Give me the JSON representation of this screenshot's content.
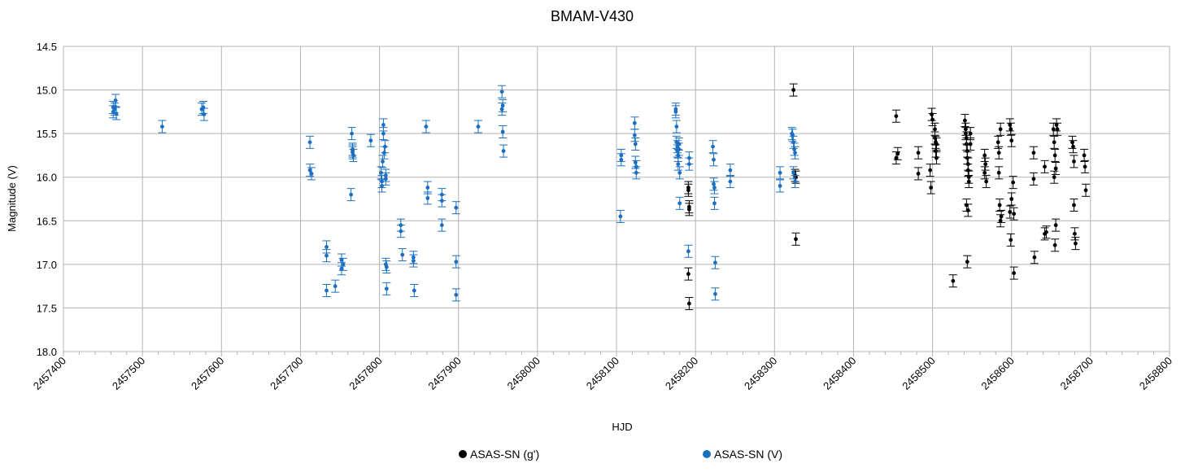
{
  "chart_data": {
    "type": "scatter",
    "title": "BMAM-V430",
    "xlabel": "HJD",
    "ylabel": "Magnitude (V)",
    "xlim": [
      2457400,
      2458800
    ],
    "ylim": [
      14.5,
      18.0
    ],
    "y_inverted": true,
    "grid": true,
    "legend_position": "bottom",
    "x_ticks": [
      "2457400",
      "2457500",
      "2457600",
      "2457700",
      "2457800",
      "2457900",
      "2458000",
      "2458100",
      "2458200",
      "2458300",
      "2458400",
      "2458500",
      "2458600",
      "2458700",
      "2458800"
    ],
    "y_ticks": [
      "14.5",
      "15.0",
      "15.5",
      "16.0",
      "16.5",
      "17.0",
      "17.5",
      "18.0"
    ],
    "error_bars": true,
    "series": [
      {
        "name": "ASAS-SN (g')",
        "color": "#000000",
        "points": [
          [
            2458191,
            16.12
          ],
          [
            2458191,
            16.15
          ],
          [
            2458192,
            16.34
          ],
          [
            2458192,
            16.37
          ],
          [
            2458191,
            17.11
          ],
          [
            2458192,
            17.45
          ],
          [
            2458324,
            15.0
          ],
          [
            2458326,
            15.98
          ],
          [
            2458327,
            16.0
          ],
          [
            2458327,
            16.71
          ],
          [
            2458454,
            15.3
          ],
          [
            2458454,
            15.78
          ],
          [
            2458456,
            15.73
          ],
          [
            2458482,
            15.72
          ],
          [
            2458482,
            15.96
          ],
          [
            2458497,
            15.92
          ],
          [
            2458498,
            16.12
          ],
          [
            2458499,
            15.28
          ],
          [
            2458500,
            15.34
          ],
          [
            2458503,
            15.45
          ],
          [
            2458503,
            15.55
          ],
          [
            2458504,
            15.6
          ],
          [
            2458504,
            15.7
          ],
          [
            2458505,
            15.78
          ],
          [
            2458505,
            15.62
          ],
          [
            2458526,
            17.19
          ],
          [
            2458541,
            15.35
          ],
          [
            2458542,
            15.45
          ],
          [
            2458542,
            15.5
          ],
          [
            2458543,
            15.55
          ],
          [
            2458543,
            15.62
          ],
          [
            2458544,
            15.7
          ],
          [
            2458544,
            15.78
          ],
          [
            2458545,
            15.85
          ],
          [
            2458545,
            15.92
          ],
          [
            2458546,
            16.0
          ],
          [
            2458546,
            16.05
          ],
          [
            2458543,
            16.32
          ],
          [
            2458545,
            16.38
          ],
          [
            2458544,
            16.97
          ],
          [
            2458548,
            15.5
          ],
          [
            2458548,
            15.62
          ],
          [
            2458566,
            15.75
          ],
          [
            2458566,
            15.95
          ],
          [
            2458568,
            16.05
          ],
          [
            2458567,
            15.85
          ],
          [
            2458583,
            15.6
          ],
          [
            2458584,
            15.72
          ],
          [
            2458584,
            15.95
          ],
          [
            2458585,
            16.32
          ],
          [
            2458586,
            16.5
          ],
          [
            2458587,
            16.45
          ],
          [
            2458586,
            15.45
          ],
          [
            2458598,
            15.4
          ],
          [
            2458599,
            15.45
          ],
          [
            2458600,
            15.58
          ],
          [
            2458598,
            16.4
          ],
          [
            2458600,
            16.25
          ],
          [
            2458599,
            16.72
          ],
          [
            2458602,
            16.06
          ],
          [
            2458603,
            16.42
          ],
          [
            2458603,
            17.1
          ],
          [
            2458628,
            15.72
          ],
          [
            2458628,
            16.02
          ],
          [
            2458629,
            16.92
          ],
          [
            2458642,
            15.88
          ],
          [
            2458642,
            16.65
          ],
          [
            2458644,
            16.63
          ],
          [
            2458653,
            15.45
          ],
          [
            2458654,
            15.6
          ],
          [
            2458655,
            15.75
          ],
          [
            2458656,
            15.9
          ],
          [
            2458654,
            16.0
          ],
          [
            2458657,
            15.4
          ],
          [
            2458658,
            15.45
          ],
          [
            2458656,
            16.55
          ],
          [
            2458655,
            16.78
          ],
          [
            2458677,
            15.6
          ],
          [
            2458678,
            15.65
          ],
          [
            2458679,
            15.82
          ],
          [
            2458679,
            16.32
          ],
          [
            2458680,
            16.65
          ],
          [
            2458681,
            16.76
          ],
          [
            2458692,
            15.75
          ],
          [
            2458693,
            15.88
          ],
          [
            2458694,
            16.15
          ]
        ]
      },
      {
        "name": "ASAS-SN (V)",
        "color": "#1b6fc1",
        "points": [
          [
            2457463,
            15.2
          ],
          [
            2457463,
            15.25
          ],
          [
            2457465,
            15.22
          ],
          [
            2457466,
            15.12
          ],
          [
            2457467,
            15.27
          ],
          [
            2457525,
            15.42
          ],
          [
            2457575,
            15.22
          ],
          [
            2457577,
            15.2
          ],
          [
            2457578,
            15.28
          ],
          [
            2457712,
            15.6
          ],
          [
            2457712,
            15.92
          ],
          [
            2457714,
            15.96
          ],
          [
            2457733,
            16.8
          ],
          [
            2457733,
            16.9
          ],
          [
            2457733,
            17.3
          ],
          [
            2457744,
            17.25
          ],
          [
            2457752,
            16.95
          ],
          [
            2457752,
            17.05
          ],
          [
            2457754,
            17.0
          ],
          [
            2457765,
            15.5
          ],
          [
            2457766,
            15.68
          ],
          [
            2457766,
            15.7
          ],
          [
            2457766,
            15.72
          ],
          [
            2457767,
            15.75
          ],
          [
            2457764,
            16.2
          ],
          [
            2457789,
            15.58
          ],
          [
            2457802,
            15.95
          ],
          [
            2457803,
            16.05
          ],
          [
            2457803,
            16.1
          ],
          [
            2457804,
            15.82
          ],
          [
            2457805,
            15.5
          ],
          [
            2457805,
            15.4
          ],
          [
            2457806,
            15.72
          ],
          [
            2457807,
            15.65
          ],
          [
            2457808,
            15.98
          ],
          [
            2457808,
            16.02
          ],
          [
            2457808,
            17.0
          ],
          [
            2457809,
            17.03
          ],
          [
            2457809,
            17.28
          ],
          [
            2457827,
            16.55
          ],
          [
            2457827,
            16.62
          ],
          [
            2457829,
            16.89
          ],
          [
            2457843,
            16.92
          ],
          [
            2457843,
            16.96
          ],
          [
            2457844,
            17.3
          ],
          [
            2457859,
            15.42
          ],
          [
            2457861,
            16.12
          ],
          [
            2457861,
            16.24
          ],
          [
            2457879,
            16.2
          ],
          [
            2457879,
            16.27
          ],
          [
            2457879,
            16.55
          ],
          [
            2457897,
            16.35
          ],
          [
            2457897,
            16.97
          ],
          [
            2457897,
            17.35
          ],
          [
            2457925,
            15.42
          ],
          [
            2457955,
            15.02
          ],
          [
            2457955,
            15.22
          ],
          [
            2457956,
            15.18
          ],
          [
            2457956,
            15.48
          ],
          [
            2457957,
            15.7
          ],
          [
            2458106,
            15.75
          ],
          [
            2458106,
            15.8
          ],
          [
            2458105,
            16.45
          ],
          [
            2458123,
            15.38
          ],
          [
            2458123,
            15.52
          ],
          [
            2458124,
            15.62
          ],
          [
            2458124,
            15.83
          ],
          [
            2458125,
            15.88
          ],
          [
            2458125,
            15.95
          ],
          [
            2458175,
            15.22
          ],
          [
            2458175,
            15.25
          ],
          [
            2458176,
            15.42
          ],
          [
            2458176,
            15.6
          ],
          [
            2458177,
            15.65
          ],
          [
            2458177,
            15.7
          ],
          [
            2458178,
            15.75
          ],
          [
            2458178,
            15.85
          ],
          [
            2458179,
            15.62
          ],
          [
            2458179,
            15.68
          ],
          [
            2458180,
            15.95
          ],
          [
            2458180,
            16.3
          ],
          [
            2458192,
            15.78
          ],
          [
            2458192,
            15.85
          ],
          [
            2458191,
            16.85
          ],
          [
            2458222,
            15.65
          ],
          [
            2458223,
            15.8
          ],
          [
            2458223,
            16.08
          ],
          [
            2458224,
            16.12
          ],
          [
            2458224,
            16.3
          ],
          [
            2458225,
            16.98
          ],
          [
            2458225,
            17.34
          ],
          [
            2458244,
            15.92
          ],
          [
            2458244,
            16.05
          ],
          [
            2458307,
            15.95
          ],
          [
            2458307,
            16.1
          ],
          [
            2458322,
            15.5
          ],
          [
            2458323,
            15.52
          ],
          [
            2458324,
            15.6
          ],
          [
            2458325,
            15.68
          ],
          [
            2458326,
            15.72
          ],
          [
            2458324,
            15.95
          ],
          [
            2458326,
            16.05
          ]
        ]
      }
    ]
  }
}
